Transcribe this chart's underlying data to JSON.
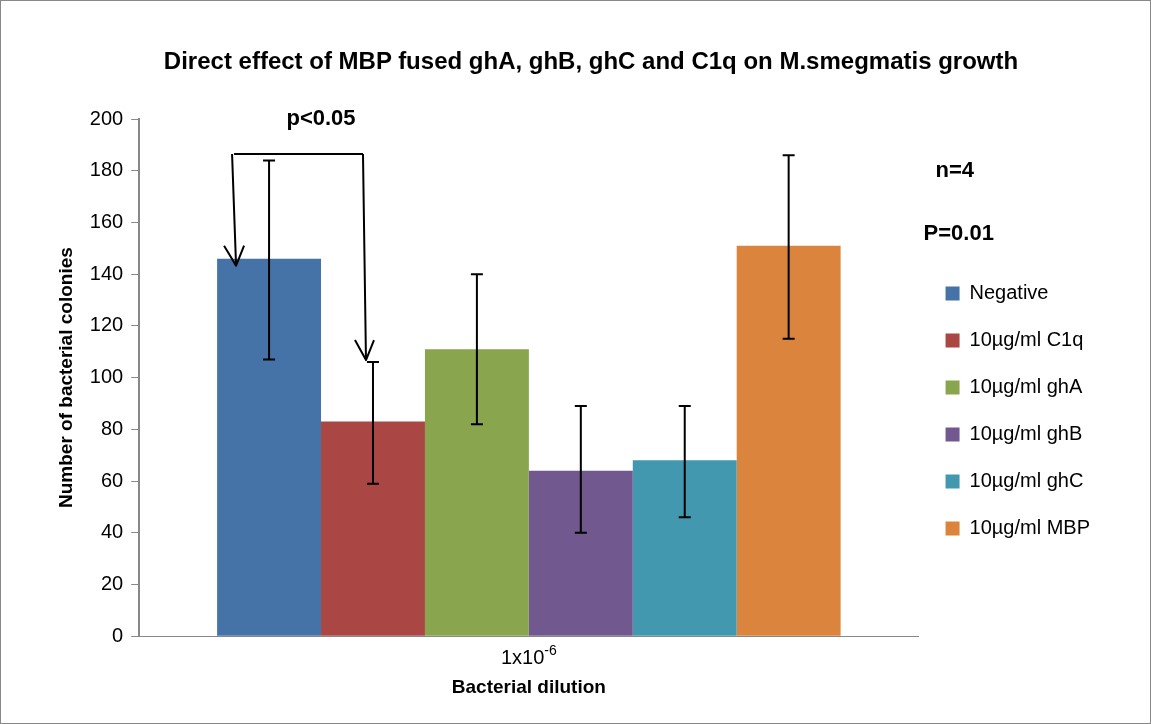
{
  "chart_data": {
    "type": "bar",
    "title": "Direct effect of MBP fused ghA, ghB, ghC and C1q on M.smegmatis growth",
    "xlabel": "Bacterial dilution",
    "ylabel": "Number of bacterial colonies",
    "categories": [
      "1x10$^{-6}$"
    ],
    "series": [
      {
        "name": "Negative",
        "color": "#4572a7",
        "values": [
          146
        ],
        "errors": [
          [
            107,
            184
          ]
        ]
      },
      {
        "name": "10µg/ml C1q",
        "color": "#aa4643",
        "values": [
          83
        ],
        "errors": [
          [
            59,
            106
          ]
        ]
      },
      {
        "name": "10µg/ml ghA",
        "color": "#89a54e",
        "values": [
          111
        ],
        "errors": [
          [
            82,
            140
          ]
        ]
      },
      {
        "name": "10µg/ml ghB",
        "color": "#71588f",
        "values": [
          64
        ],
        "errors": [
          [
            40,
            89
          ]
        ]
      },
      {
        "name": "10µg/ml ghC",
        "color": "#4198af",
        "values": [
          68
        ],
        "errors": [
          [
            46,
            89
          ]
        ]
      },
      {
        "name": "10µg/ml MBP",
        "color": "#db843d",
        "values": [
          151
        ],
        "errors": [
          [
            115,
            186
          ]
        ]
      }
    ],
    "ylim": [
      0,
      200
    ],
    "yticks": [
      0,
      20,
      40,
      60,
      80,
      100,
      120,
      140,
      160,
      180,
      200
    ],
    "grid": false,
    "legend": "right",
    "annotations": [
      "p<0.05",
      "n=4",
      "P=0.01"
    ]
  }
}
